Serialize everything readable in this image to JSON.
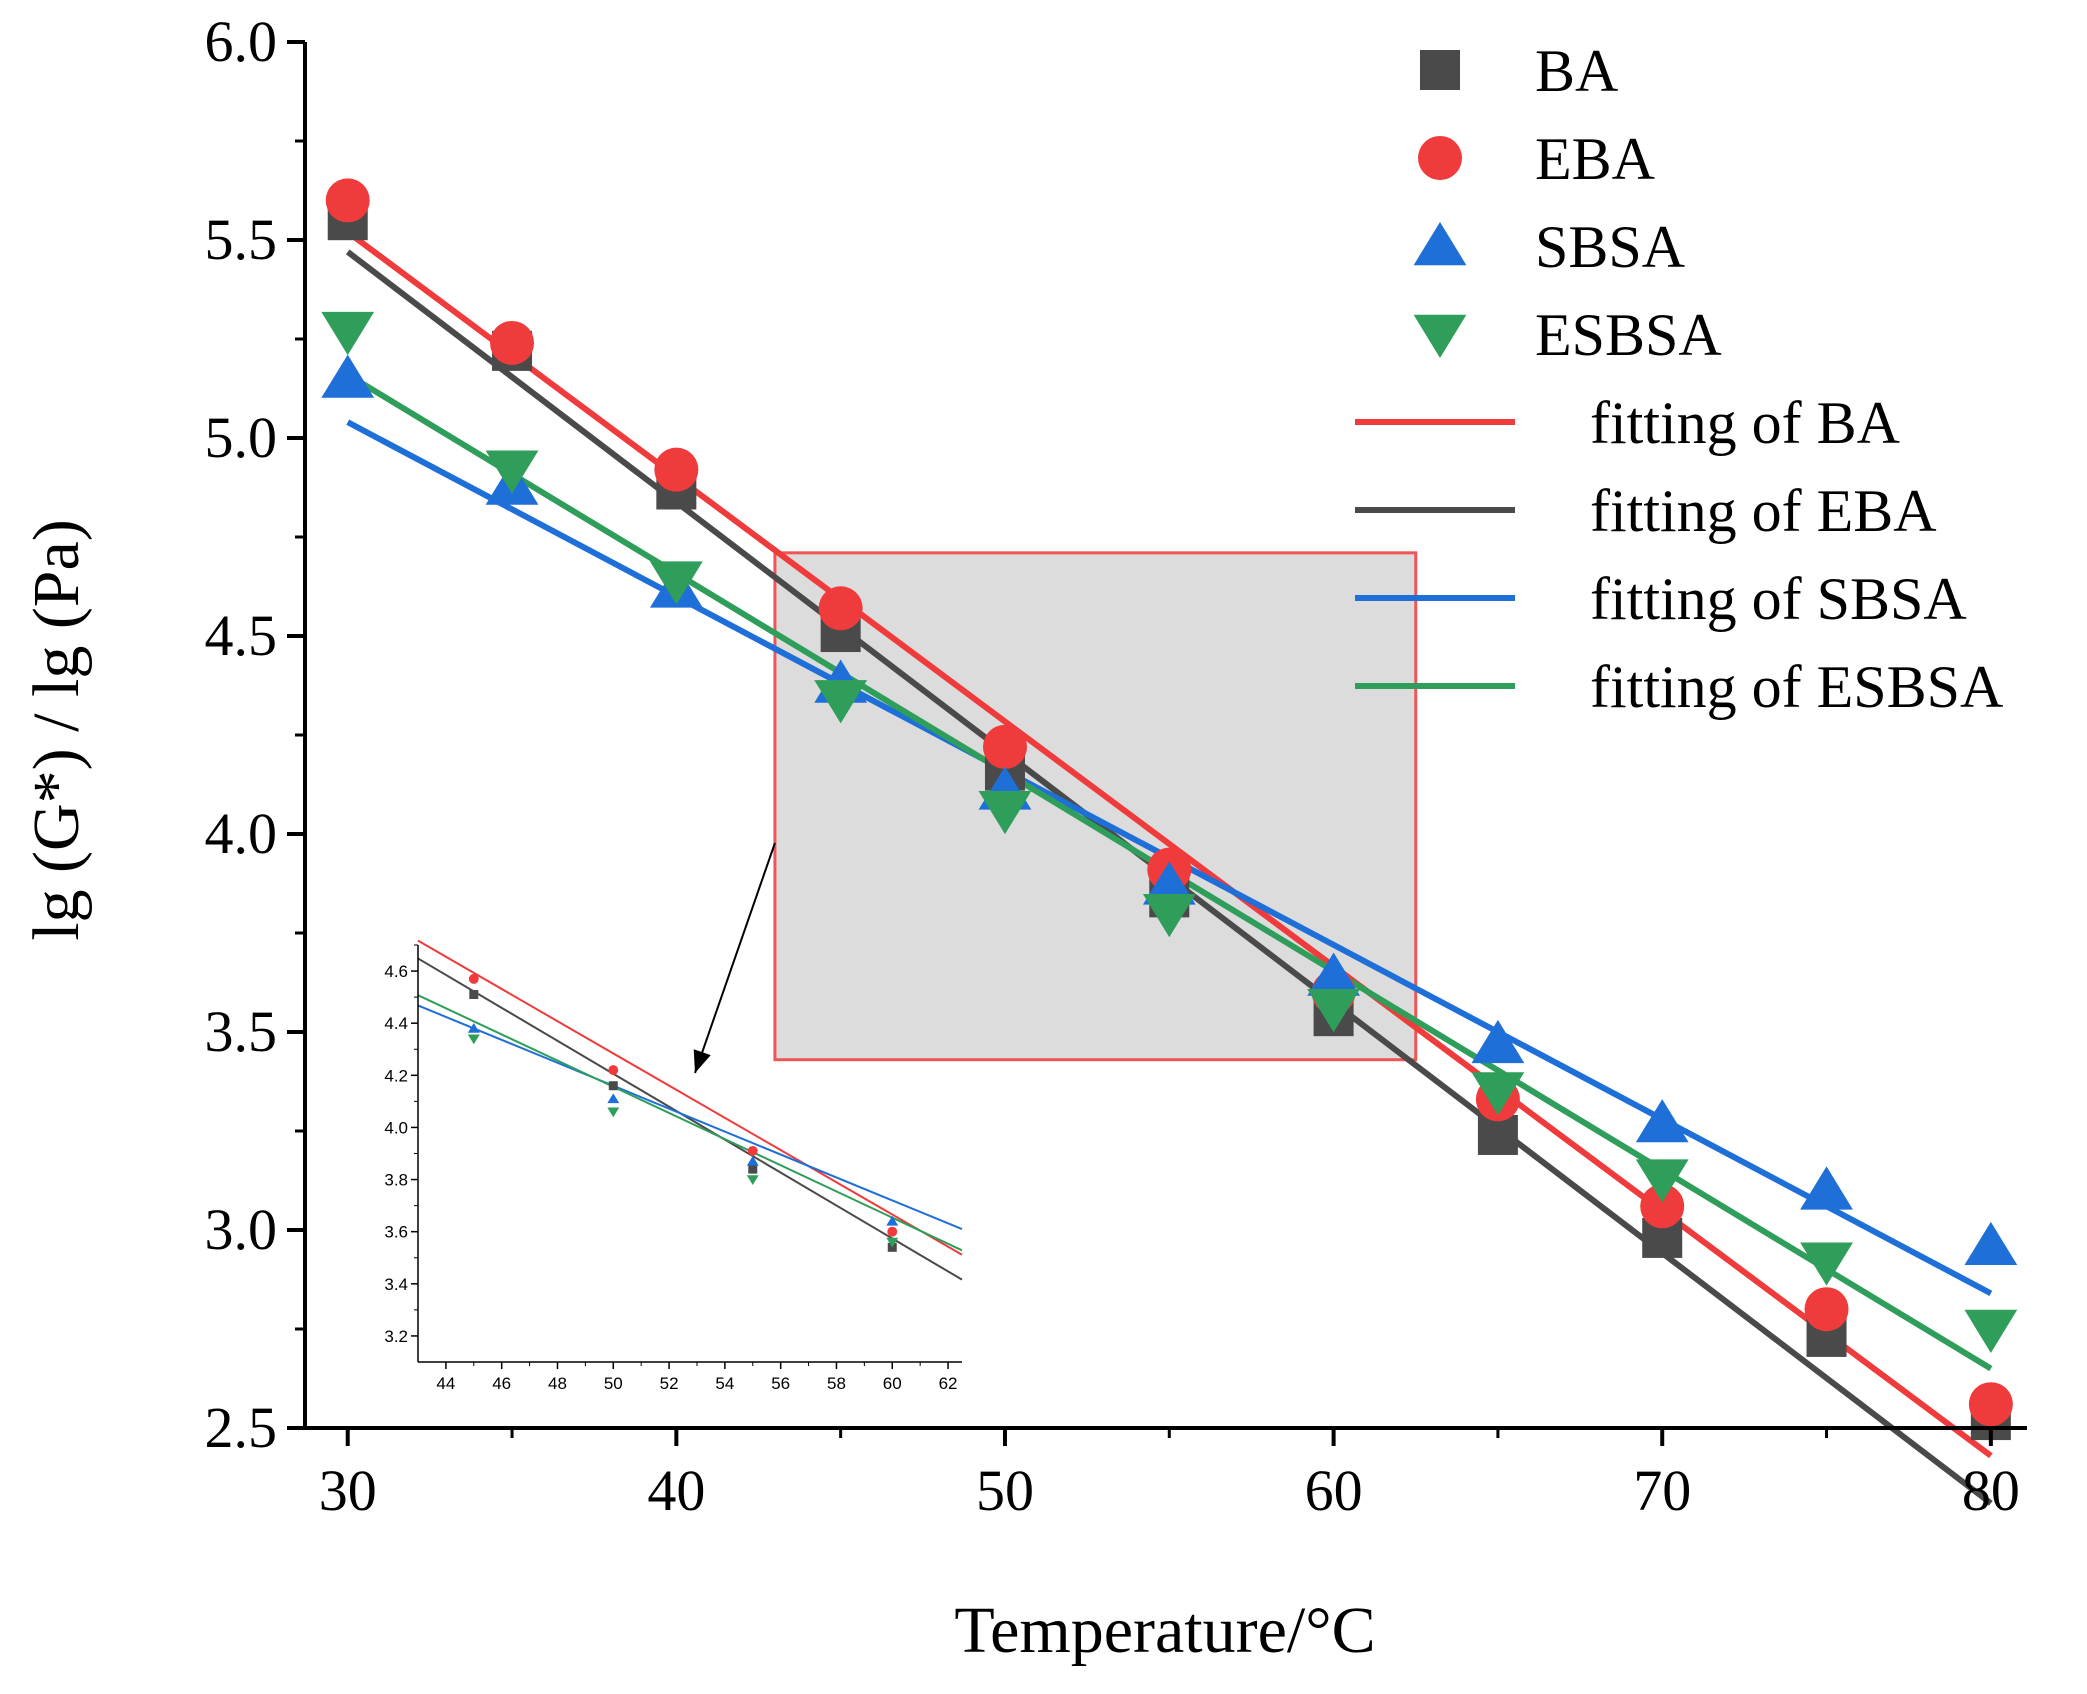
{
  "chart_data": {
    "type": "scatter",
    "xlabel": "Temperature/°C",
    "ylabel": "lg (G*) / lg (Pa)",
    "xlim": [
      28.7,
      81.1
    ],
    "ylim": [
      2.5,
      6.0
    ],
    "x_ticks": [
      "30",
      "40",
      "50",
      "60",
      "70",
      "80"
    ],
    "y_ticks": [
      "2.5",
      "3.0",
      "3.5",
      "4.0",
      "4.5",
      "5.0",
      "5.5",
      "6.0"
    ],
    "series": [
      {
        "name": "BA",
        "marker": "square",
        "color": "#4a4a4a",
        "x": [
          30,
          35,
          40,
          45,
          50,
          55,
          60,
          65,
          70,
          75,
          80
        ],
        "y": [
          5.55,
          5.22,
          4.87,
          4.51,
          4.16,
          3.84,
          3.54,
          3.24,
          2.98,
          2.73,
          2.52
        ]
      },
      {
        "name": "EBA",
        "marker": "circle",
        "color": "#ef3b3b",
        "x": [
          30,
          35,
          40,
          45,
          50,
          55,
          60,
          65,
          70,
          75,
          80
        ],
        "y": [
          5.6,
          5.24,
          4.92,
          4.57,
          4.22,
          3.91,
          3.6,
          3.33,
          3.06,
          2.8,
          2.56
        ]
      },
      {
        "name": "SBSA",
        "marker": "triangle-up",
        "color": "#1f6fd8",
        "x": [
          30,
          35,
          40,
          45,
          50,
          55,
          60,
          65,
          70,
          75,
          80
        ],
        "y": [
          5.15,
          4.88,
          4.62,
          4.38,
          4.11,
          3.87,
          3.64,
          3.47,
          3.27,
          3.1,
          2.96
        ]
      },
      {
        "name": "ESBSA",
        "marker": "triangle-down",
        "color": "#2f9e5a",
        "x": [
          30,
          35,
          40,
          45,
          50,
          55,
          60,
          65,
          70,
          75,
          80
        ],
        "y": [
          5.27,
          4.92,
          4.64,
          4.34,
          4.06,
          3.8,
          3.56,
          3.35,
          3.13,
          2.92,
          2.75
        ]
      }
    ],
    "fits": [
      {
        "name": "fitting of BA",
        "color": "#ef3b3b",
        "x": [
          30,
          80
        ],
        "y": [
          5.52,
          2.43
        ]
      },
      {
        "name": "fitting of EBA",
        "color": "#4a4a4a",
        "x": [
          30,
          80
        ],
        "y": [
          5.47,
          2.31
        ]
      },
      {
        "name": "fitting of SBSA",
        "color": "#1f6fd8",
        "x": [
          30,
          80
        ],
        "y": [
          5.04,
          2.84
        ]
      },
      {
        "name": "fitting of ESBSA",
        "color": "#2f9e5a",
        "x": [
          30,
          80
        ],
        "y": [
          5.16,
          2.65
        ]
      }
    ],
    "zoom_region": {
      "x": [
        43.0,
        62.5
      ],
      "y": [
        3.43,
        4.71
      ]
    },
    "inset": {
      "xlim": [
        43,
        62.5
      ],
      "ylim": [
        3.1,
        4.7
      ],
      "x_ticks": [
        "44",
        "46",
        "48",
        "50",
        "52",
        "54",
        "56",
        "58",
        "60",
        "62"
      ],
      "y_ticks": [
        "3.2",
        "3.4",
        "3.6",
        "3.8",
        "4.0",
        "4.2",
        "4.4",
        "4.6"
      ]
    },
    "legend_position": "top-right",
    "grid": false
  }
}
